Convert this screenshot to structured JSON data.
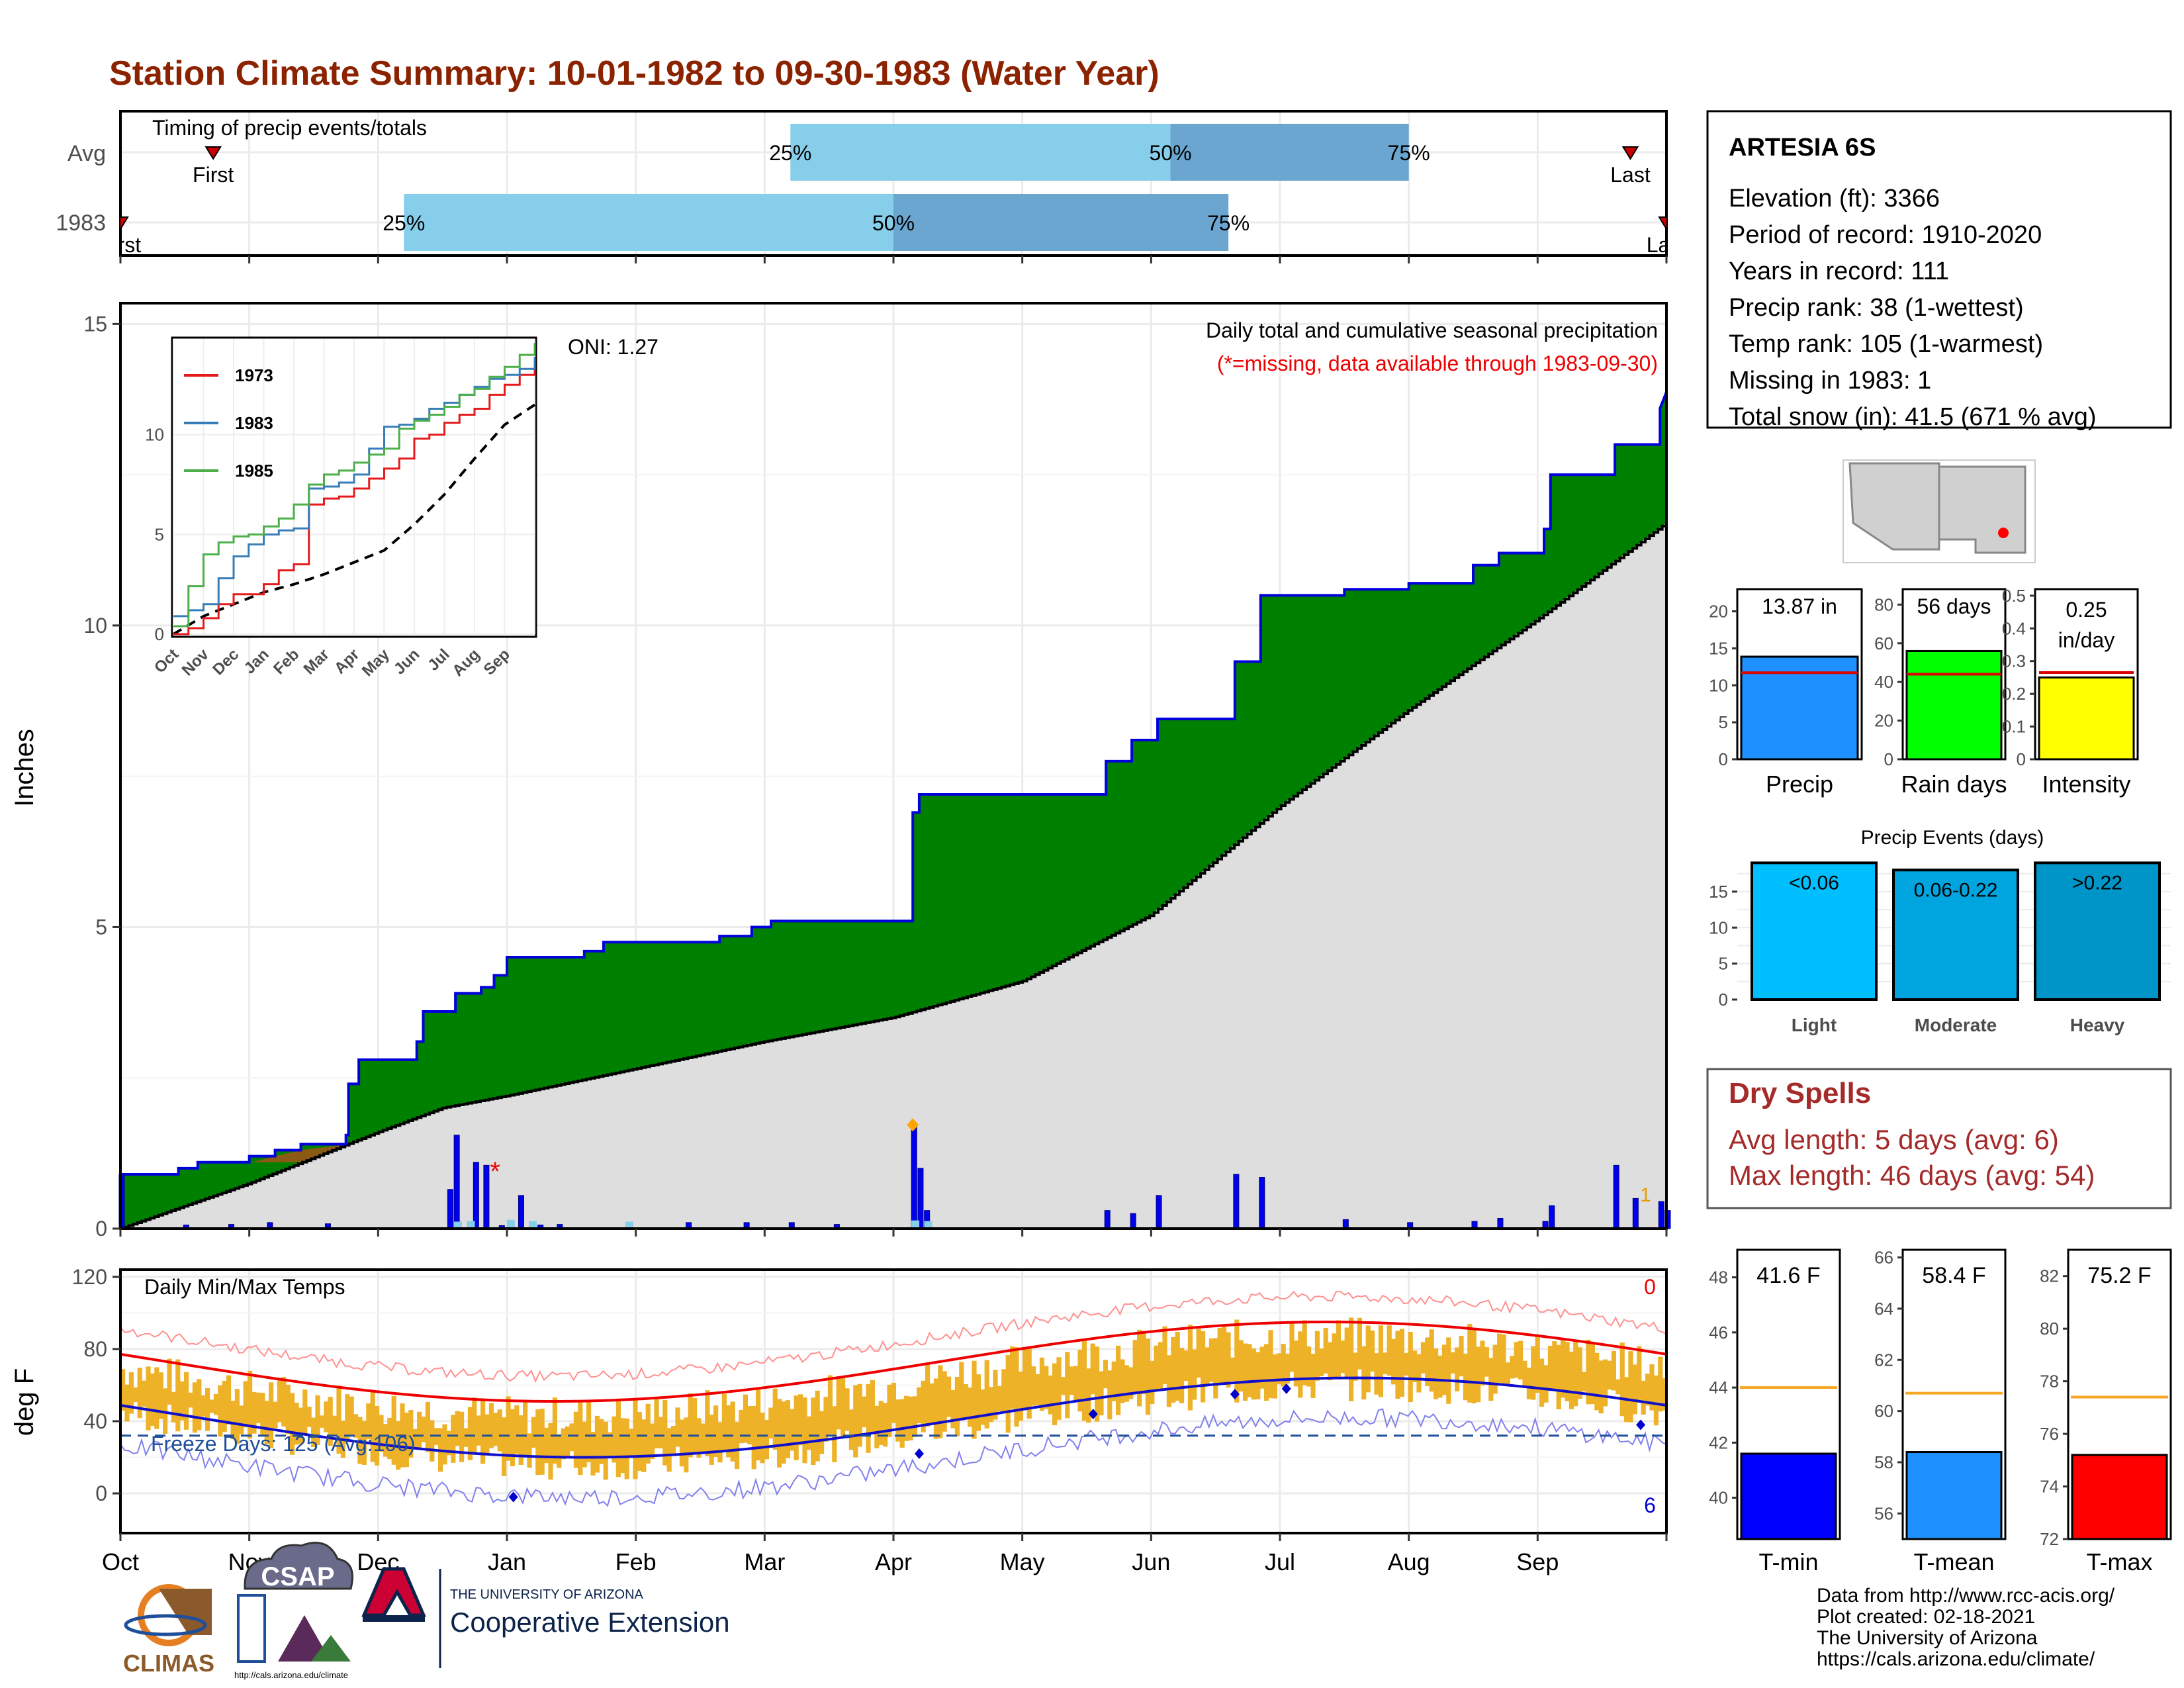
{
  "title": "Station Climate Summary: 10-01-1982 to 09-30-1983 (Water Year)",
  "colors": {
    "title": "#8b2200",
    "q1": "#87ceeb",
    "q2": "#6aa6cf",
    "cum_fill": "#008000",
    "deficit_fill": "#8b5a14",
    "avg_fill": "#dedede",
    "daily_bar": "#0000ee",
    "tmax_avg": "#ee0000",
    "tmin_avg": "#1010cc",
    "temp_bar": "#eeb229",
    "dry_spells": "#a52a2a"
  },
  "timing_panel": {
    "label": "Timing of precip events/totals",
    "rows": [
      {
        "name": "Avg",
        "first_label": "First",
        "last_label": "Last",
        "first_month": 0.72,
        "last_month": 11.72,
        "q25": 5.2,
        "q50": 8.15,
        "q75": 10.0
      },
      {
        "name": "1983",
        "first_label": "First",
        "last_label": "Last",
        "first_month": 0.0,
        "last_month": 12.0,
        "q25": 2.2,
        "q50": 6.0,
        "q75": 8.6
      }
    ],
    "q_labels": [
      "25%",
      "50%",
      "75%"
    ]
  },
  "precip_panel": {
    "ylabel": "Inches",
    "yticks": [
      0,
      5,
      10,
      15
    ],
    "ymax": 15.3,
    "note1": "Daily total and cumulative seasonal precipitation",
    "note2": "(*=missing, data available through 1983-09-30)",
    "oni": "ONI: 1.27",
    "missing_count": "1",
    "missing_marker": "*"
  },
  "month_labels": [
    "Oct",
    "Nov",
    "Dec",
    "Jan",
    "Feb",
    "Mar",
    "Apr",
    "May",
    "Jun",
    "Jul",
    "Aug",
    "Sep"
  ],
  "inset": {
    "months": [
      "Oct",
      "Nov",
      "Dec",
      "Jan",
      "Feb",
      "Mar",
      "Apr",
      "May",
      "Jun",
      "Jul",
      "Aug",
      "Sep"
    ],
    "yticks": [
      0,
      5,
      10
    ],
    "series": [
      {
        "name": "1973",
        "color": "#e41a1c",
        "points": [
          [
            0,
            0
          ],
          [
            0.5,
            0.3
          ],
          [
            1,
            0.8
          ],
          [
            1.5,
            1.5
          ],
          [
            2,
            2.0
          ],
          [
            3,
            2.5
          ],
          [
            3.5,
            3.2
          ],
          [
            4,
            3.5
          ],
          [
            4.5,
            6.5
          ],
          [
            5,
            6.8
          ],
          [
            5.5,
            6.9
          ],
          [
            6,
            7.3
          ],
          [
            6.5,
            7.8
          ],
          [
            7,
            8.3
          ],
          [
            7.5,
            8.8
          ],
          [
            8,
            9.8
          ],
          [
            8.5,
            10.0
          ],
          [
            9,
            10.6
          ],
          [
            9.5,
            11.0
          ],
          [
            10,
            11.3
          ],
          [
            10.5,
            12.0
          ],
          [
            11,
            12.5
          ],
          [
            11.5,
            13.0
          ],
          [
            12,
            13.3
          ]
        ]
      },
      {
        "name": "1983",
        "color": "#377eb8",
        "points": [
          [
            0,
            0.9
          ],
          [
            0.5,
            1.2
          ],
          [
            1,
            1.5
          ],
          [
            1.5,
            2.8
          ],
          [
            2,
            3.9
          ],
          [
            2.5,
            4.5
          ],
          [
            3,
            5.0
          ],
          [
            3.5,
            5.2
          ],
          [
            4,
            5.3
          ],
          [
            4.5,
            7.3
          ],
          [
            5,
            7.4
          ],
          [
            5.5,
            7.6
          ],
          [
            6,
            8.0
          ],
          [
            6.5,
            9.3
          ],
          [
            7,
            10.4
          ],
          [
            7.5,
            10.5
          ],
          [
            8,
            10.8
          ],
          [
            8.5,
            11.3
          ],
          [
            9,
            11.6
          ],
          [
            9.5,
            12.0
          ],
          [
            10,
            12.4
          ],
          [
            10.5,
            12.8
          ],
          [
            11,
            13.0
          ],
          [
            11.5,
            13.3
          ],
          [
            12,
            13.9
          ]
        ]
      },
      {
        "name": "1985",
        "color": "#4daf4a",
        "points": [
          [
            0,
            0.4
          ],
          [
            0.5,
            2.4
          ],
          [
            1,
            4.0
          ],
          [
            1.5,
            4.6
          ],
          [
            2,
            4.9
          ],
          [
            2.5,
            5.0
          ],
          [
            3,
            5.4
          ],
          [
            3.5,
            5.8
          ],
          [
            4,
            6.5
          ],
          [
            4.5,
            7.5
          ],
          [
            5,
            8.0
          ],
          [
            5.5,
            8.2
          ],
          [
            6,
            8.6
          ],
          [
            6.5,
            9.0
          ],
          [
            7,
            9.3
          ],
          [
            7.5,
            10.3
          ],
          [
            8,
            10.7
          ],
          [
            8.5,
            11.0
          ],
          [
            9,
            11.4
          ],
          [
            9.5,
            12.0
          ],
          [
            10,
            12.3
          ],
          [
            10.5,
            12.9
          ],
          [
            11,
            13.4
          ],
          [
            11.5,
            14.0
          ],
          [
            12,
            14.6
          ]
        ]
      }
    ],
    "avg_points": [
      [
        0,
        0
      ],
      [
        1,
        0.9
      ],
      [
        2,
        1.5
      ],
      [
        3,
        2.1
      ],
      [
        4,
        2.5
      ],
      [
        5,
        3.0
      ],
      [
        6,
        3.6
      ],
      [
        7,
        4.2
      ],
      [
        8,
        5.5
      ],
      [
        9,
        7.0
      ],
      [
        10,
        8.8
      ],
      [
        11,
        10.5
      ],
      [
        12,
        11.5
      ]
    ]
  },
  "temp_panel": {
    "ylabel": "deg F",
    "label": "Daily Min/Max Temps",
    "yticks": [
      0,
      40,
      80,
      120
    ],
    "freeze_label": "Freeze Days: 125 (Avg:106)",
    "freeze_line_value": 32,
    "record_high_count": "0",
    "record_low_count": "6"
  },
  "station_info": {
    "name": "ARTESIA 6S",
    "lines": [
      "Elevation (ft): 3366",
      "Period of record: 1910-2020",
      "Years in record: 111",
      "Precip rank: 38 (1-wettest)",
      "Temp rank: 105 (1-warmest)",
      "Missing in 1983: 1",
      "Total snow (in): 41.5 (671 % avg)"
    ]
  },
  "summary_bars": [
    {
      "name": "Precip",
      "value": 13.87,
      "avg": 11.7,
      "label": "13.87 in",
      "color": "#1e90ff",
      "yticks": [
        0,
        5,
        10,
        15,
        20
      ],
      "ymax": 23
    },
    {
      "name": "Rain days",
      "value": 56,
      "avg": 44,
      "label": "56 days",
      "color": "#00ff00",
      "yticks": [
        0,
        20,
        40,
        60,
        80
      ],
      "ymax": 88
    },
    {
      "name": "Intensity",
      "value": 0.25,
      "avg": 0.265,
      "label": "0.25 in/day",
      "color": "#ffff00",
      "yticks": [
        0.0,
        0.1,
        0.2,
        0.3,
        0.4,
        0.5
      ],
      "ymax": 0.52
    }
  ],
  "precip_events": {
    "title": "Precip Events (days)",
    "yticks": [
      0,
      5,
      10,
      15
    ],
    "ymax": 19.5,
    "bars": [
      {
        "name": "Light",
        "label": "<0.06",
        "value": 19,
        "color": "#00bfff"
      },
      {
        "name": "Moderate",
        "label": "0.06-0.22",
        "value": 18,
        "color": "#00a5e0"
      },
      {
        "name": "Heavy",
        "label": ">0.22",
        "value": 19,
        "color": "#0095c8"
      }
    ]
  },
  "dry_spells": {
    "title": "Dry Spells",
    "line1": "Avg length: 5 days (avg: 6)",
    "line2": "Max length: 46 days (avg: 54)"
  },
  "temp_bars": [
    {
      "name": "T-min",
      "value": 41.6,
      "avg": 44.0,
      "label": "41.6 F",
      "color": "#0000ff",
      "ymin": 38.5,
      "ymax": 49,
      "yticks": [
        40,
        42,
        44,
        46,
        48
      ]
    },
    {
      "name": "T-mean",
      "value": 58.4,
      "avg": 60.7,
      "label": "58.4 F",
      "color": "#1e90ff",
      "ymin": 55,
      "ymax": 66.3,
      "yticks": [
        56,
        58,
        60,
        62,
        64,
        66
      ]
    },
    {
      "name": "T-max",
      "value": 75.2,
      "avg": 77.4,
      "label": "75.2 F",
      "color": "#ff0000",
      "ymin": 72,
      "ymax": 83,
      "yticks": [
        72,
        74,
        76,
        78,
        80,
        82
      ]
    }
  ],
  "footer": {
    "lines": [
      "Data from http://www.rcc-acis.org/",
      "Plot created: 02-18-2021",
      "The University of Arizona",
      "https://cals.arizona.edu/climate/"
    ],
    "logo1": "CLIMAS",
    "logo2": "CSAP",
    "logo2_url": "http://cals.arizona.edu/climate",
    "logo3_line1": "THE UNIVERSITY OF ARIZONA",
    "logo3_line2": "Cooperative Extension"
  }
}
